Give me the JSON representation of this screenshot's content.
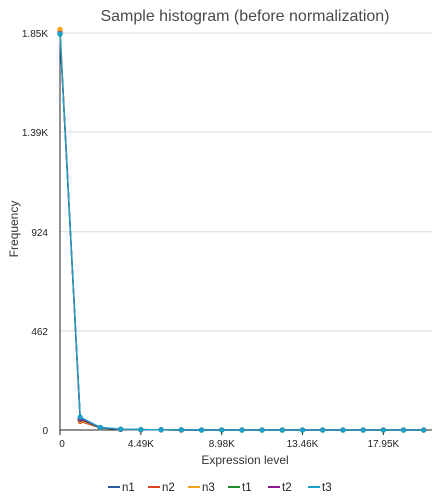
{
  "chart_data": {
    "type": "line",
    "title": "Sample histogram (before normalization)",
    "xlabel": "Expression level",
    "ylabel": "Frequency",
    "xlim": [
      0,
      20650
    ],
    "ylim": [
      0,
      1860
    ],
    "xticks": [
      {
        "value": 0,
        "label": "0"
      },
      {
        "value": 4490,
        "label": "4.49K"
      },
      {
        "value": 8980,
        "label": "8.98K"
      },
      {
        "value": 13460,
        "label": "13.46K"
      },
      {
        "value": 17950,
        "label": "17.95K"
      }
    ],
    "yticks": [
      {
        "value": 0,
        "label": "0"
      },
      {
        "value": 462,
        "label": "462"
      },
      {
        "value": 924,
        "label": "924"
      },
      {
        "value": 1390,
        "label": "1.39K"
      },
      {
        "value": 1850,
        "label": "1.85K"
      }
    ],
    "grid": true,
    "legend_position": "bottom",
    "x": [
      0,
      1122,
      2245,
      3367,
      4490,
      5612,
      6735,
      7857,
      8980,
      10100,
      11220,
      12340,
      13460,
      14580,
      15710,
      16830,
      17950,
      19070,
      20190
    ],
    "series": [
      {
        "name": "n1",
        "color": "#2c5aa0",
        "values": [
          1850,
          55,
          12,
          4,
          2,
          1,
          1,
          0,
          0,
          0,
          0,
          0,
          0,
          0,
          0,
          0,
          0,
          0,
          0
        ]
      },
      {
        "name": "n2",
        "color": "#e0401c",
        "values": [
          1862,
          40,
          10,
          3,
          1,
          1,
          0,
          0,
          0,
          0,
          0,
          0,
          0,
          0,
          0,
          0,
          0,
          0,
          0
        ]
      },
      {
        "name": "n3",
        "color": "#f6a11c",
        "values": [
          1868,
          45,
          11,
          3,
          2,
          1,
          0,
          0,
          0,
          0,
          0,
          0,
          0,
          0,
          0,
          0,
          0,
          0,
          0
        ]
      },
      {
        "name": "t1",
        "color": "#1e8b2c",
        "values": [
          1845,
          50,
          10,
          3,
          1,
          1,
          0,
          0,
          0,
          0,
          0,
          0,
          0,
          0,
          0,
          0,
          0,
          0,
          0
        ]
      },
      {
        "name": "t2",
        "color": "#8a1a8f",
        "values": [
          1848,
          52,
          11,
          3,
          2,
          1,
          0,
          0,
          0,
          0,
          0,
          0,
          0,
          0,
          0,
          0,
          0,
          0,
          0
        ]
      },
      {
        "name": "t3",
        "color": "#1aa1c8",
        "values": [
          1846,
          60,
          12,
          4,
          2,
          1,
          1,
          0,
          0,
          0,
          0,
          0,
          0,
          0,
          0,
          0,
          0,
          0,
          0
        ]
      }
    ]
  }
}
